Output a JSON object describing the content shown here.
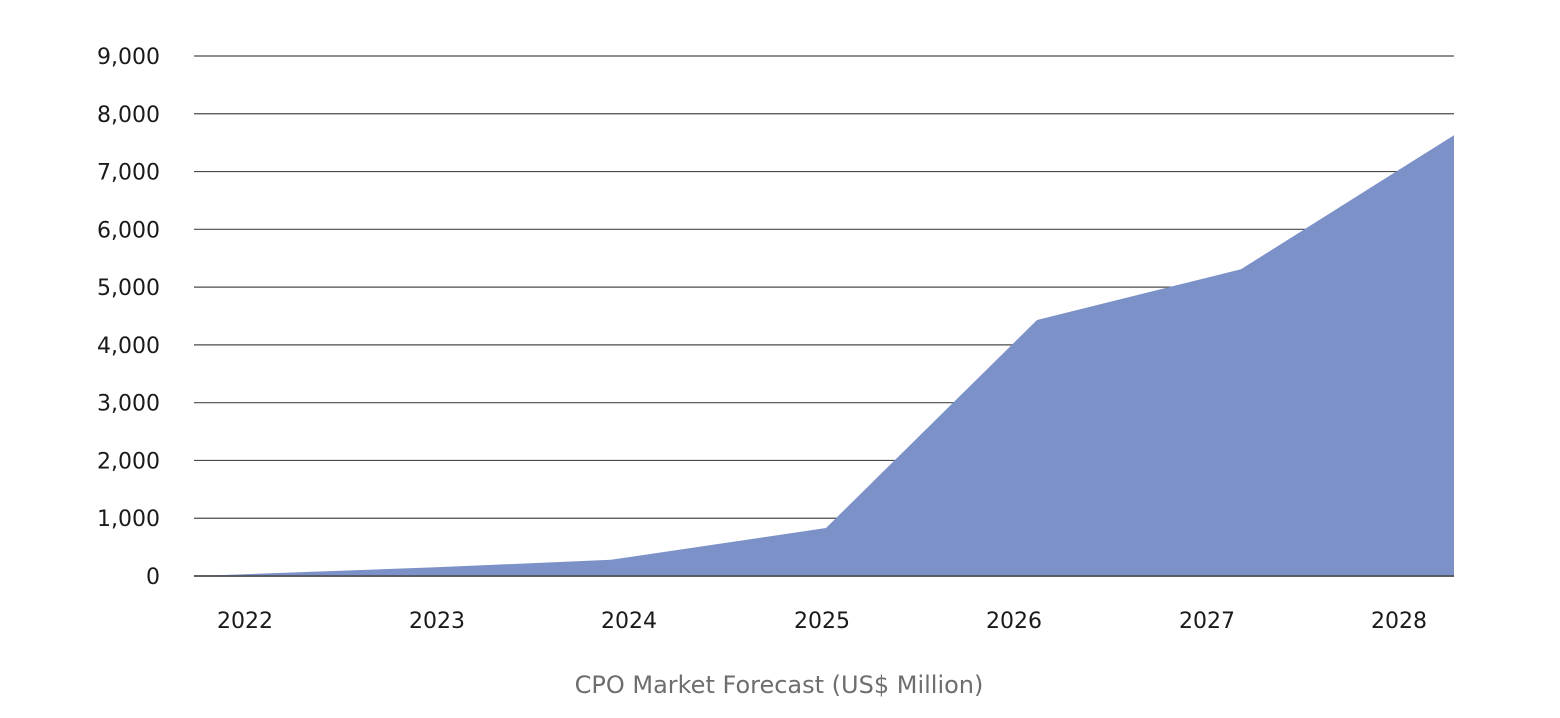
{
  "chart_data": {
    "type": "area",
    "title": "CPO Market Forecast (US$ Million)",
    "xlabel": "",
    "ylabel": "",
    "ylim": [
      0,
      9000
    ],
    "y_ticks": [
      0,
      1000,
      2000,
      3000,
      4000,
      5000,
      6000,
      7000,
      8000,
      9000
    ],
    "y_tick_labels": [
      "0",
      "1,000",
      "2,000",
      "3,000",
      "4,000",
      "5,000",
      "6,000",
      "7,000",
      "8,000",
      "9,000"
    ],
    "categories": [
      "2022",
      "2023",
      "2024",
      "2025",
      "2026",
      "2027",
      "2028"
    ],
    "series": [
      {
        "values": [
          0,
          150,
          280,
          830,
          4430,
          5310,
          7630
        ]
      }
    ],
    "grid": true,
    "legend": "none",
    "colors": {
      "area": "#7b91c8",
      "grid": "#4a4a4a",
      "tick_text": "#1a1a1a",
      "caption_text": "#6e6e6e"
    }
  }
}
